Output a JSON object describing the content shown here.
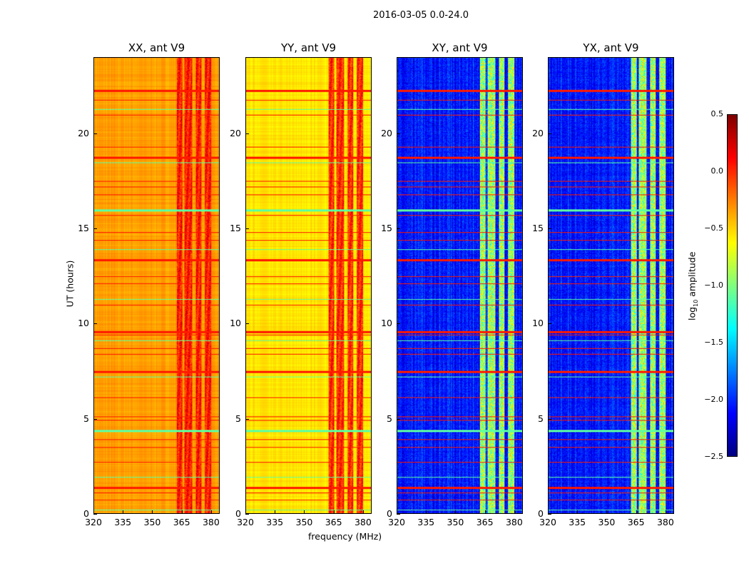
{
  "chart_data": {
    "type": "heatmap",
    "title": "2016-03-05 0.0-24.0",
    "xlabel": "frequency (MHz)",
    "ylabel": "UT (hours)",
    "xlim": [
      320,
      384.4
    ],
    "ylim": [
      0,
      24
    ],
    "xticks": [
      "320",
      "335",
      "350",
      "365",
      "380"
    ],
    "xtick_values": [
      320,
      335,
      350,
      365,
      380
    ],
    "yticks": [
      "0",
      "5",
      "10",
      "15",
      "20"
    ],
    "ytick_values": [
      0,
      5,
      10,
      15,
      20
    ],
    "colormap": "jet",
    "colorbar": {
      "label_prefix": "log",
      "label_sub": "10",
      "label_suffix": " amplitude",
      "range": [
        -2.5,
        0.5
      ],
      "ticks": [
        "0.5",
        "0.0",
        "−0.5",
        "−1.0",
        "−1.5",
        "−2.0",
        "−2.5"
      ],
      "tick_values": [
        0.5,
        0.0,
        -0.5,
        -1.0,
        -1.5,
        -2.0,
        -2.5
      ]
    },
    "panels": [
      {
        "title": "XX, ant V9",
        "base_level": -0.35,
        "band_level": 0.05
      },
      {
        "title": "YY, ant V9",
        "base_level": -0.55,
        "band_level": 0.0
      },
      {
        "title": "XY, ant V9",
        "base_level": -2.05,
        "band_level": -0.9
      },
      {
        "title": "YX, ant V9",
        "base_level": -2.05,
        "band_level": -0.9
      }
    ],
    "rfi_bands_mhz": [
      [
        362.5,
        365.3
      ],
      [
        366.5,
        370.5
      ],
      [
        372.3,
        375.2
      ],
      [
        377.0,
        380.2
      ]
    ],
    "rfi_times_hours": [
      22.3,
      21.8,
      21.3,
      21.0,
      19.3,
      18.8,
      18.5,
      17.5,
      17.2,
      16.8,
      16.0,
      15.7,
      14.8,
      14.4,
      13.9,
      13.4,
      12.5,
      12.1,
      11.3,
      11.0,
      9.6,
      9.4,
      9.1,
      8.7,
      8.4,
      7.5,
      7.2,
      6.1,
      5.1,
      4.9,
      4.4,
      3.9,
      3.5,
      2.7,
      1.9,
      1.4,
      1.1,
      0.7,
      0.2
    ]
  }
}
